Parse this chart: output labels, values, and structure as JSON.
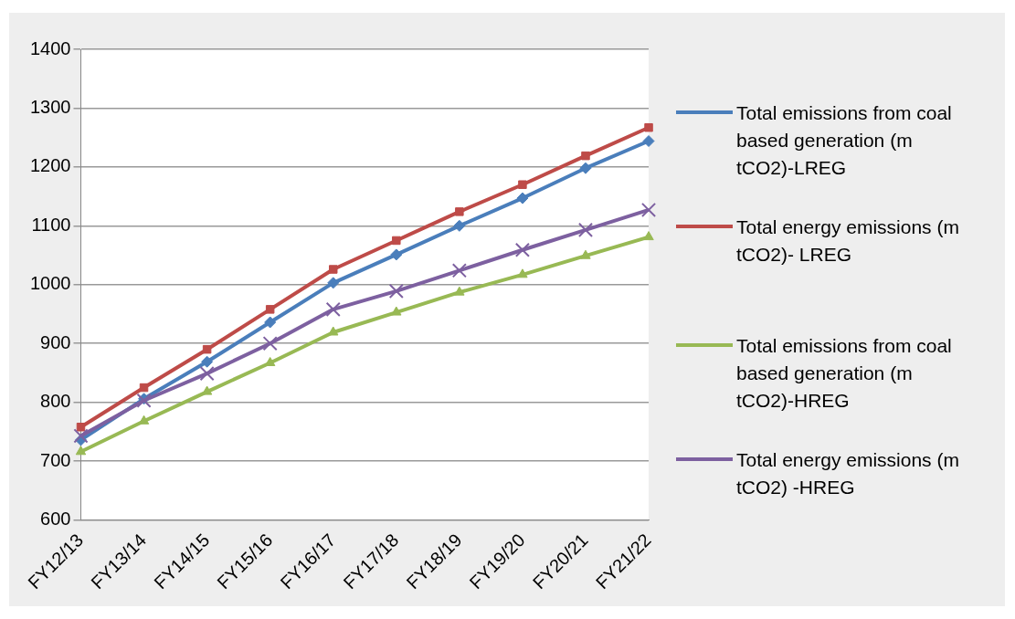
{
  "chart_data": {
    "type": "line",
    "categories": [
      "FY12/13",
      "FY13/14",
      "FY14/15",
      "FY15/16",
      "FY16/17",
      "FY17/18",
      "FY18/19",
      "FY19/20",
      "FY20/21",
      "FY21/22"
    ],
    "series": [
      {
        "name": "Total emissions from coal based generation (m tCO2)-LREG",
        "color": "#4a7ebb",
        "marker": "diamond",
        "values": [
          736,
          806,
          869,
          936,
          1003,
          1051,
          1100,
          1147,
          1198,
          1244
        ]
      },
      {
        "name": "Total energy emissions (m tCO2)- LREG",
        "color": "#be4b48",
        "marker": "square",
        "values": [
          758,
          825,
          890,
          958,
          1026,
          1075,
          1124,
          1170,
          1219,
          1267
        ]
      },
      {
        "name": "Total emissions from coal based generation (m tCO2)-HREG",
        "color": "#98b954",
        "marker": "triangle",
        "values": [
          716,
          768,
          818,
          867,
          919,
          953,
          987,
          1017,
          1049,
          1081
        ]
      },
      {
        "name": "Total energy emissions (m tCO2) -HREG",
        "color": "#7d60a0",
        "marker": "cross",
        "values": [
          743,
          803,
          849,
          900,
          958,
          989,
          1024,
          1059,
          1093,
          1127
        ]
      }
    ],
    "ylim": [
      600,
      1400
    ],
    "yticks": [
      600,
      700,
      800,
      900,
      1000,
      1100,
      1200,
      1300,
      1400
    ],
    "grid": "y",
    "legend": "right"
  }
}
